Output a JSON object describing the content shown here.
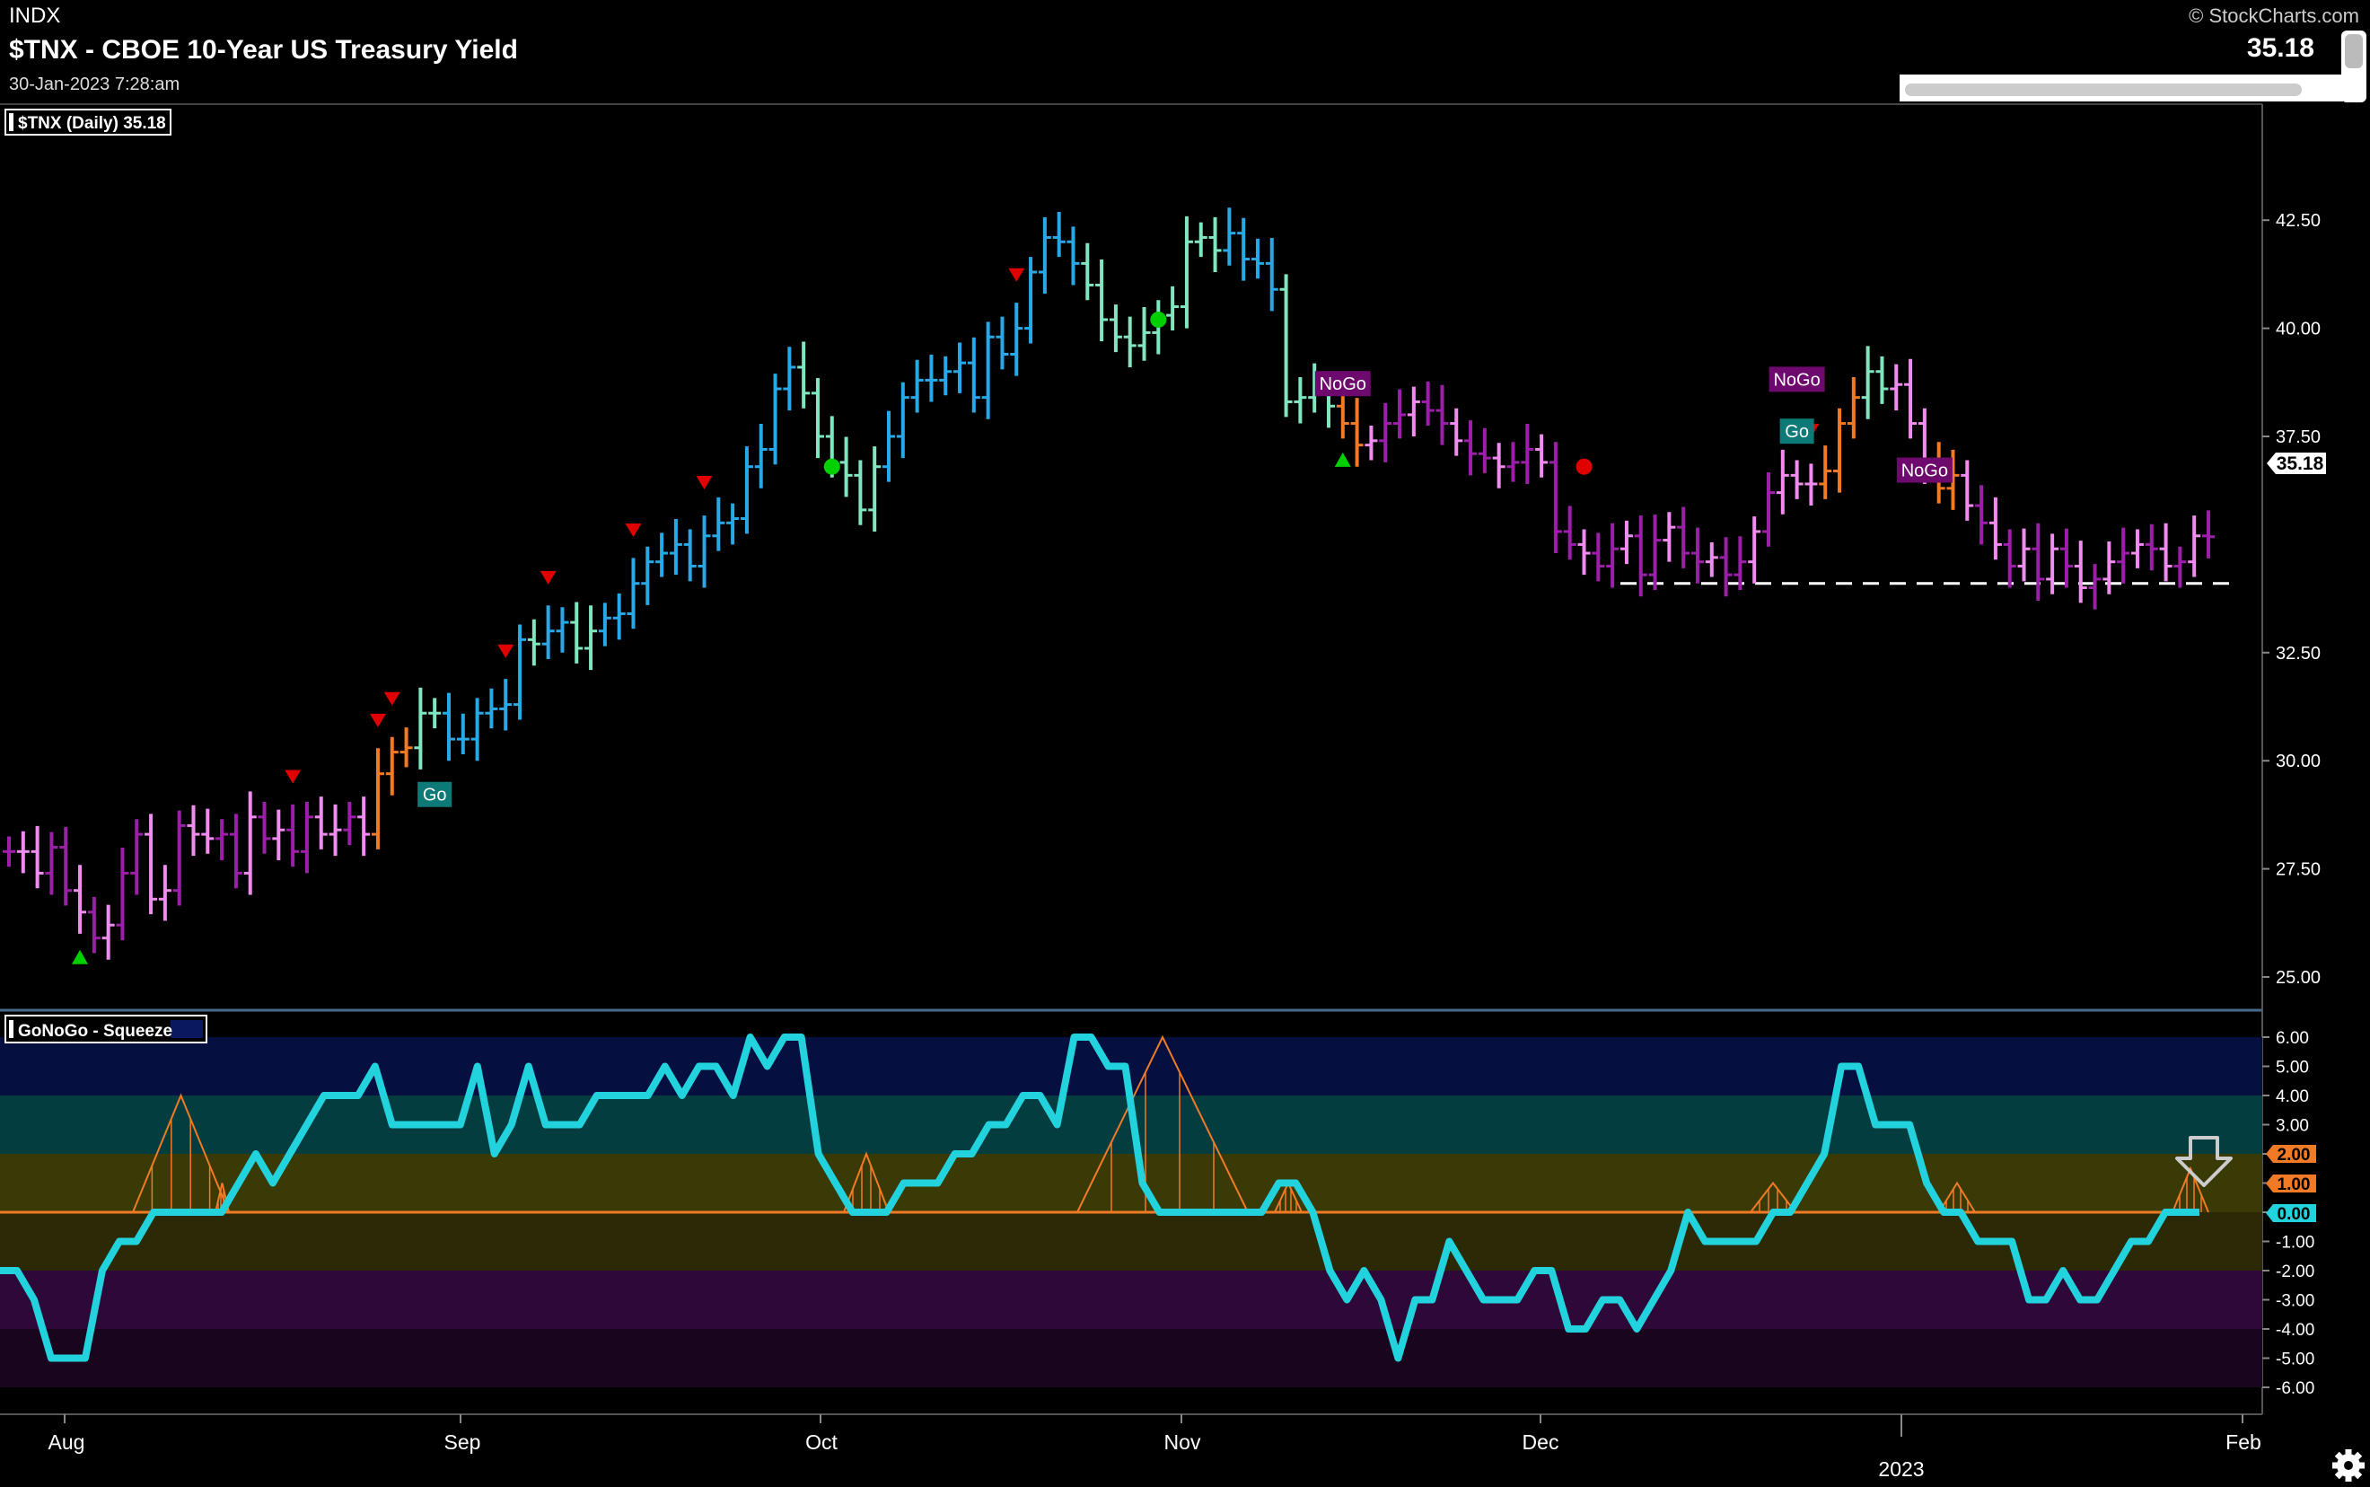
{
  "header": {
    "exchange": "INDX",
    "title": "$TNX - CBOE 10-Year US Treasury Yield",
    "date": "30-Jan-2023 7:28:am",
    "copyright": "© StockCharts.com",
    "last_value": "35.18"
  },
  "price_panel": {
    "legend_label": "$TNX (Daily) 35.18",
    "price_tag": "35.18",
    "y_ticks": [
      "42.50",
      "40.00",
      "37.50",
      "32.50",
      "30.00",
      "27.50",
      "25.00"
    ]
  },
  "indicator_panel": {
    "legend_label": "GoNoGo - Squeeze",
    "y_ticks": [
      "6.00",
      "5.00",
      "4.00",
      "3.00",
      "2.00",
      "1.00",
      "0.00",
      "-1.00",
      "-2.00",
      "-3.00",
      "-4.00",
      "-5.00",
      "-6.00"
    ],
    "value_tags": [
      "2.00",
      "1.00",
      "0.00"
    ]
  },
  "x_axis": {
    "months": [
      "Aug",
      "Sep",
      "Oct",
      "Nov",
      "Dec",
      "Feb"
    ],
    "year_label": "2023"
  },
  "colors": {
    "background": "#000000",
    "go_strong": "#29a8e8",
    "go_weak": "#80e6c0",
    "nogo_strong": "#9b1fa8",
    "nogo_weak": "#f08cf0",
    "neutral": "#f07a26",
    "oscillator": "#22d3de",
    "squeeze": "#f07a26",
    "up_marker": "#00d000",
    "down_marker": "#e00000"
  },
  "chart_data": [
    {
      "type": "ohlc",
      "title": "$TNX - CBOE 10-Year US Treasury Yield",
      "ylim": [
        24.5,
        43.5
      ],
      "support_level": 34.1,
      "labels": [
        "Go",
        "NoGo",
        "NoGo",
        "Go",
        "NoGo"
      ],
      "series": [
        {
          "name": "$TNX (Daily)",
          "close": [
            27.9,
            27.9,
            27.4,
            28.0,
            27.0,
            26.5,
            25.9,
            26.2,
            27.4,
            28.3,
            26.8,
            27.0,
            28.5,
            28.3,
            28.2,
            28.3,
            27.4,
            28.7,
            28.2,
            28.4,
            27.9,
            28.7,
            28.3,
            28.4,
            28.7,
            28.3,
            29.7,
            30.2,
            30.3,
            31.1,
            31.1,
            30.5,
            30.5,
            31.1,
            31.2,
            31.3,
            32.8,
            32.7,
            33.0,
            33.2,
            32.6,
            33.0,
            33.3,
            33.4,
            34.1,
            34.6,
            34.8,
            35.0,
            34.5,
            35.2,
            35.5,
            35.6,
            36.8,
            37.2,
            38.6,
            39.1,
            38.5,
            37.5,
            36.9,
            36.6,
            35.8,
            36.8,
            37.5,
            38.4,
            38.8,
            38.8,
            39.0,
            39.2,
            38.4,
            39.8,
            39.4,
            40.0,
            41.3,
            42.1,
            42.0,
            41.5,
            41.0,
            40.2,
            39.8,
            39.6,
            39.9,
            40.3,
            40.5,
            42.0,
            42.1,
            41.8,
            42.2,
            41.6,
            41.5,
            40.9,
            38.3,
            38.4,
            38.6,
            38.2,
            37.8,
            37.3,
            37.4,
            37.8,
            38.0,
            38.3,
            38.1,
            37.8,
            37.4,
            37.1,
            37.0,
            36.8,
            36.9,
            37.2,
            36.9,
            35.3,
            35.0,
            34.8,
            34.5,
            34.9,
            35.2,
            34.3,
            35.1,
            35.4,
            34.8,
            34.6,
            34.7,
            34.3,
            34.6,
            35.3,
            36.2,
            36.6,
            36.4,
            36.4,
            36.7,
            37.8,
            38.4,
            39.0,
            38.6,
            38.7,
            37.8,
            36.9,
            36.3,
            36.6,
            35.9,
            35.5,
            35.0,
            34.5,
            34.9,
            34.2,
            34.9,
            34.5,
            34.0,
            34.2,
            34.6,
            34.8,
            35.0,
            34.9,
            34.5,
            34.6,
            35.2,
            35.18
          ]
        }
      ]
    },
    {
      "type": "line",
      "title": "GoNoGo - Squeeze",
      "ylim": [
        -6.0,
        6.0
      ],
      "series": [
        {
          "name": "GoNoGo - Squeeze",
          "values": [
            -2,
            -2,
            -3,
            -5,
            -5,
            -5,
            -2,
            -1,
            -1,
            0,
            0,
            0,
            0,
            0,
            1,
            2,
            1,
            2,
            3,
            4,
            4,
            4,
            5,
            3,
            3,
            3,
            3,
            3,
            5,
            2,
            3,
            5,
            3,
            3,
            3,
            4,
            4,
            4,
            4,
            5,
            4,
            5,
            5,
            4,
            6,
            5,
            6,
            6,
            2,
            1,
            0,
            0,
            0,
            1,
            1,
            1,
            2,
            2,
            3,
            3,
            4,
            4,
            3,
            6,
            6,
            5,
            5,
            1,
            0,
            0,
            0,
            0,
            0,
            0,
            0,
            1,
            1,
            0,
            -2,
            -3,
            -2,
            -3,
            -5,
            -3,
            -3,
            -1,
            -2,
            -3,
            -3,
            -3,
            -2,
            -2,
            -4,
            -4,
            -3,
            -3,
            -4,
            -3,
            -2,
            0,
            -1,
            -1,
            -1,
            -1,
            0,
            0,
            1,
            2,
            5,
            5,
            3,
            3,
            3,
            1,
            0,
            0,
            -1,
            -1,
            -1,
            -3,
            -3,
            -2,
            -3,
            -3,
            -2,
            -1,
            -1,
            0,
            0,
            0
          ]
        }
      ]
    }
  ]
}
